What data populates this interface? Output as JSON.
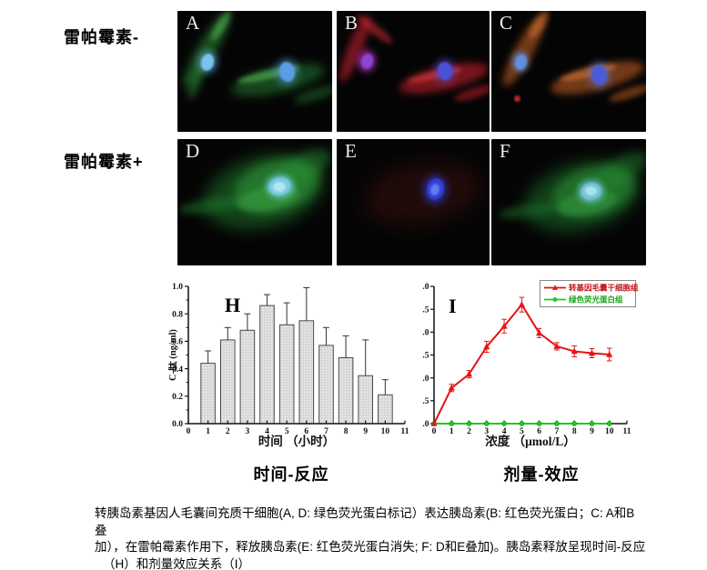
{
  "micrographs": {
    "rows": [
      {
        "label": "雷帕霉素-",
        "panels": [
          {
            "letter": "A",
            "blobs": [
              [
                32,
                43,
                20,
                95,
                30,
                "rgba(50,155,60,0.5)",
                5
              ],
              [
                48,
                16,
                10,
                38,
                32,
                "rgba(95,205,95,0.5)",
                3
              ],
              [
                20,
                78,
                12,
                40,
                18,
                "rgba(45,140,55,0.45)",
                4
              ],
              [
                33,
                56,
                22,
                26,
                0,
                "rgba(105,185,240,0.5)",
                4
              ],
              [
                33,
                56,
                14,
                19,
                15,
                "#79c4ee",
                1
              ],
              [
                110,
                76,
                105,
                28,
                -13,
                "rgba(45,150,60,0.45)",
                5
              ],
              [
                100,
                70,
                70,
                10,
                -13,
                "rgba(100,210,100,0.5)",
                2
              ],
              [
                120,
                67,
                26,
                30,
                0,
                "rgba(90,160,235,0.45)",
                4
              ],
              [
                120,
                67,
                17,
                22,
                -10,
                "#5b9ce6",
                1
              ],
              [
                152,
                92,
                50,
                12,
                -18,
                "rgba(40,130,50,0.45)",
                4
              ]
            ]
          },
          {
            "letter": "B",
            "blobs": [
              [
                20,
                42,
                16,
                78,
                22,
                "rgba(215,35,50,0.55)",
                4
              ],
              [
                42,
                20,
                48,
                11,
                38,
                "rgba(225,45,55,0.5)",
                3
              ],
              [
                33,
                55,
                22,
                26,
                0,
                "rgba(160,60,220,0.45)",
                4
              ],
              [
                33,
                55,
                18,
                22,
                0,
                "rgba(230,40,150,0.35)",
                3
              ],
              [
                33,
                55,
                13,
                17,
                15,
                "#8a46d2",
                1
              ],
              [
                118,
                74,
                100,
                26,
                -13,
                "rgba(210,35,45,0.55)",
                4
              ],
              [
                108,
                70,
                62,
                9,
                -13,
                "rgba(240,65,65,0.5)",
                2
              ],
              [
                119,
                66,
                24,
                28,
                0,
                "rgba(90,80,230,0.45)",
                4
              ],
              [
                119,
                66,
                16,
                20,
                -10,
                "#4a50d8",
                1
              ],
              [
                150,
                90,
                45,
                11,
                -18,
                "rgba(205,30,40,0.5)",
                3
              ]
            ]
          },
          {
            "letter": "C",
            "blobs": [
              [
                36,
                44,
                20,
                88,
                29,
                "rgba(205,98,38,0.55)",
                4
              ],
              [
                52,
                15,
                12,
                36,
                33,
                "rgba(225,122,52,0.5)",
                3
              ],
              [
                32,
                56,
                20,
                24,
                0,
                "rgba(100,150,230,0.5)",
                3
              ],
              [
                32,
                56,
                13,
                17,
                15,
                "#5f8fe0",
                1
              ],
              [
                116,
                73,
                105,
                27,
                -14,
                "rgba(205,100,38,0.55)",
                4
              ],
              [
                106,
                68,
                65,
                10,
                -14,
                "rgba(232,132,58,0.5)",
                2
              ],
              [
                118,
                70,
                25,
                29,
                0,
                "rgba(95,120,230,0.5)",
                4
              ],
              [
                118,
                70,
                17,
                21,
                -10,
                "#4a5cd8",
                1
              ],
              [
                28,
                96,
                7,
                7,
                0,
                "rgba(225,45,45,0.85)",
                1
              ],
              [
                152,
                90,
                48,
                11,
                -18,
                "rgba(200,95,38,0.5)",
                3
              ]
            ]
          }
        ]
      },
      {
        "label": "雷帕霉素+",
        "panels": [
          {
            "letter": "D",
            "blobs": [
              [
                95,
                58,
                135,
                78,
                -15,
                "rgba(32,128,45,0.5)",
                8
              ],
              [
                108,
                52,
                95,
                56,
                -15,
                "rgba(52,168,62,0.5)",
                5
              ],
              [
                138,
                32,
                68,
                30,
                -30,
                "rgba(42,148,55,0.45)",
                5
              ],
              [
                38,
                73,
                75,
                16,
                -8,
                "rgba(32,122,45,0.5)",
                4
              ],
              [
                100,
                65,
                70,
                26,
                -12,
                "rgba(68,188,78,0.35)",
                3
              ],
              [
                112,
                52,
                33,
                28,
                0,
                "rgba(120,210,232,0.55)",
                3
              ],
              [
                112,
                52,
                25,
                20,
                -12,
                "#7cc9e0",
                1
              ],
              [
                112,
                52,
                14,
                11,
                0,
                "rgba(195,240,250,0.75)",
                1
              ]
            ]
          },
          {
            "letter": "E",
            "blobs": [
              [
                95,
                60,
                130,
                68,
                -10,
                "rgba(95,26,20,0.3)",
                10
              ],
              [
                108,
                55,
                28,
                33,
                0,
                "rgba(52,62,222,0.5)",
                4
              ],
              [
                108,
                55,
                19,
                24,
                15,
                "#2f3fd4",
                1
              ],
              [
                108,
                55,
                10,
                13,
                15,
                "rgba(115,135,250,0.8)",
                1
              ]
            ]
          },
          {
            "letter": "F",
            "blobs": [
              [
                100,
                63,
                130,
                74,
                -15,
                "rgba(28,118,42,0.5)",
                8
              ],
              [
                112,
                58,
                92,
                54,
                -15,
                "rgba(48,158,60,0.5)",
                5
              ],
              [
                142,
                35,
                66,
                28,
                -32,
                "rgba(38,138,52,0.45)",
                5
              ],
              [
                44,
                78,
                72,
                15,
                -8,
                "rgba(28,112,42,0.5)",
                4
              ],
              [
                105,
                70,
                66,
                25,
                -12,
                "rgba(62,178,74,0.35)",
                3
              ],
              [
                109,
                57,
                31,
                27,
                0,
                "rgba(115,205,228,0.55)",
                3
              ],
              [
                109,
                57,
                23,
                19,
                -12,
                "#78c4dc",
                1
              ],
              [
                109,
                57,
                13,
                10,
                0,
                "rgba(190,238,248,0.75)",
                1
              ]
            ]
          }
        ]
      }
    ]
  },
  "chart_data": [
    {
      "type": "bar",
      "panel_label": "H",
      "title": "",
      "xlabel": "时间 （小时）",
      "ylabel": "C-肽 (ng/ml)",
      "categories": [
        1,
        2,
        3,
        4,
        5,
        6,
        7,
        8,
        9,
        10
      ],
      "values": [
        0.44,
        0.61,
        0.68,
        0.86,
        0.72,
        0.75,
        0.57,
        0.48,
        0.35,
        0.21
      ],
      "errors_upper": [
        0.09,
        0.09,
        0.12,
        0.08,
        0.16,
        0.24,
        0.13,
        0.16,
        0.26,
        0.11
      ],
      "xlim": [
        0,
        11
      ],
      "ylim": [
        0,
        1.0
      ],
      "x_ticks": [
        0,
        1,
        2,
        3,
        4,
        5,
        6,
        7,
        8,
        9,
        10,
        11
      ],
      "y_ticks": [
        0,
        0.2,
        0.4,
        0.6,
        0.8,
        1.0
      ],
      "grid": false,
      "legend_position": "none",
      "bar_fill": "#e3e3e3",
      "bar_dot": "#9a9a9a",
      "bar_stroke": "#4a4a4a",
      "axis_color": "#111111"
    },
    {
      "type": "line",
      "panel_label": "I",
      "title": "",
      "xlabel": "浓度 （μmol/L）",
      "ylabel": "",
      "x": [
        0,
        1,
        2,
        3,
        4,
        5,
        6,
        7,
        8,
        9,
        10
      ],
      "series": [
        {
          "name": "转基因毛囊干细胞组",
          "color": "#e41414",
          "marker": "triangle",
          "values": [
            0,
            0.78,
            1.08,
            1.68,
            2.13,
            2.6,
            1.98,
            1.69,
            1.58,
            1.54,
            1.51
          ],
          "errors": [
            0,
            0.08,
            0.08,
            0.12,
            0.15,
            0.16,
            0.1,
            0.08,
            0.12,
            0.1,
            0.14
          ]
        },
        {
          "name": "绿色荧光蛋白组",
          "color": "#1ecc1e",
          "marker": "circle",
          "values": [
            0,
            0,
            0,
            0,
            0,
            0,
            0,
            0,
            0,
            0,
            0
          ],
          "errors": [
            0,
            0,
            0,
            0,
            0,
            0,
            0,
            0,
            0,
            0,
            0
          ]
        }
      ],
      "xlim": [
        0,
        11
      ],
      "ylim": [
        0,
        3.0
      ],
      "x_ticks": [
        0,
        1,
        2,
        3,
        4,
        5,
        6,
        7,
        8,
        9,
        10,
        11
      ],
      "y_ticks": {
        "values": [
          0,
          0.5,
          1,
          1.5,
          2,
          2.5,
          3
        ],
        "labels": [
          ".0",
          ".5",
          ".0",
          ".5",
          ".0",
          ".5",
          ".0"
        ]
      },
      "grid": false,
      "legend_position": "top-right",
      "axis_color": "#111111"
    }
  ],
  "chart_captions": {
    "time": "时间-反应",
    "dose": "剂量-效应"
  },
  "figure_caption": {
    "lines": [
      "转胰岛素基因人毛囊间充质干细胞(A, D: 绿色荧光蛋白标记）表达胰岛素(B: 红色荧光蛋白；C: A和B叠",
      "加），在雷帕霉素作用下，释放胰岛素(E: 红色荧光蛋白消失; F: D和E叠加)。胰岛素释放呈现时间-反应",
      "（H）和剂量效应关系（I）"
    ]
  }
}
